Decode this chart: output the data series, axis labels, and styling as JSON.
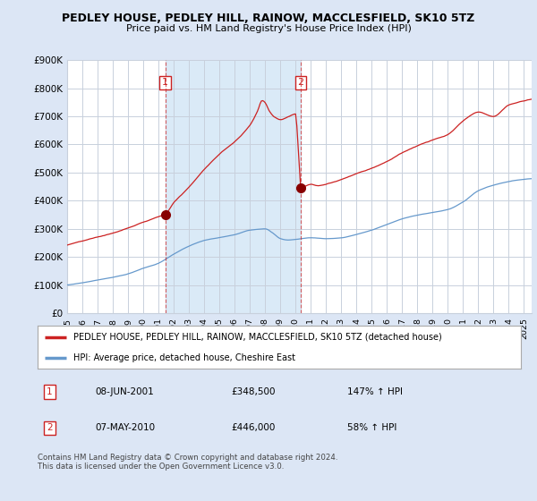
{
  "title": "PEDLEY HOUSE, PEDLEY HILL, RAINOW, MACCLESFIELD, SK10 5TZ",
  "subtitle": "Price paid vs. HM Land Registry's House Price Index (HPI)",
  "bg_color": "#dce6f5",
  "plot_bg_color": "#ffffff",
  "grid_color": "#c8d0dc",
  "red_line_color": "#cc2222",
  "blue_line_color": "#6699cc",
  "shade_color": "#daeaf7",
  "sale1_date": "08-JUN-2001",
  "sale1_price": 348500,
  "sale1_label": "147% ↑ HPI",
  "sale2_date": "07-MAY-2010",
  "sale2_price": 446000,
  "sale2_label": "58% ↑ HPI",
  "legend_label_red": "PEDLEY HOUSE, PEDLEY HILL, RAINOW, MACCLESFIELD, SK10 5TZ (detached house)",
  "legend_label_blue": "HPI: Average price, detached house, Cheshire East",
  "footer": "Contains HM Land Registry data © Crown copyright and database right 2024.\nThis data is licensed under the Open Government Licence v3.0.",
  "ylim": [
    0,
    900000
  ],
  "yticks": [
    0,
    100000,
    200000,
    300000,
    400000,
    500000,
    600000,
    700000,
    800000,
    900000
  ],
  "ytick_labels": [
    "£0",
    "£100K",
    "£200K",
    "£300K",
    "£400K",
    "£500K",
    "£600K",
    "£700K",
    "£800K",
    "£900K"
  ],
  "sale1_x": 2001.44,
  "sale2_x": 2010.33,
  "xlim_left": 1995.0,
  "xlim_right": 2025.5
}
